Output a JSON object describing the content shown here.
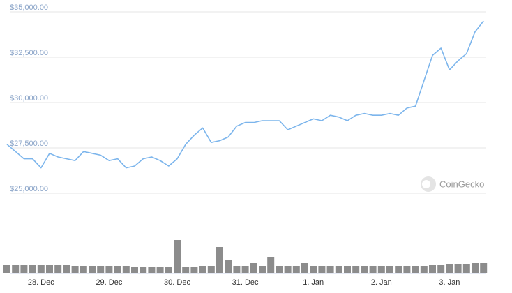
{
  "chart_data": {
    "type": "line",
    "watermark": "CoinGecko",
    "categories": [
      null,
      null,
      null,
      null,
      "28. Dec",
      null,
      null,
      null,
      null,
      null,
      null,
      null,
      "29. Dec",
      null,
      null,
      null,
      null,
      null,
      null,
      null,
      "30. Dec",
      null,
      null,
      null,
      null,
      null,
      null,
      null,
      "31. Dec",
      null,
      null,
      null,
      null,
      null,
      null,
      null,
      "1. Jan",
      null,
      null,
      null,
      null,
      null,
      null,
      null,
      "2. Jan",
      null,
      null,
      null,
      null,
      null,
      null,
      null,
      "3. Jan",
      null,
      null,
      null,
      null
    ],
    "series": [
      {
        "color": "#7cb5ec",
        "values": [
          27700,
          27300,
          26900,
          26900,
          26400,
          27200,
          27000,
          26900,
          26800,
          27300,
          27200,
          27100,
          26800,
          26900,
          26400,
          26500,
          26900,
          27000,
          26800,
          26500,
          26900,
          27700,
          28200,
          28600,
          27800,
          27900,
          28100,
          28700,
          28900,
          28900,
          29000,
          29000,
          29000,
          28500,
          28700,
          28900,
          29100,
          29000,
          29300,
          29200,
          29000,
          29300,
          29400,
          29300,
          29300,
          29400,
          29300,
          29700,
          29800,
          31200,
          32600,
          33000,
          31800,
          32300,
          32700,
          33900,
          34500
        ]
      }
    ],
    "volume": [
      12,
      12,
      12,
      12,
      12,
      12,
      12,
      12,
      11,
      11,
      11,
      11,
      10,
      10,
      10,
      9,
      9,
      9,
      9,
      9,
      48,
      9,
      9,
      10,
      11,
      38,
      20,
      11,
      10,
      15,
      11,
      24,
      10,
      10,
      10,
      15,
      10,
      10,
      10,
      10,
      10,
      10,
      10,
      10,
      10,
      10,
      10,
      10,
      10,
      11,
      12,
      12,
      13,
      14,
      14,
      15,
      15
    ],
    "volume_color": "#8c8c8c",
    "ylim": [
      25000,
      35000
    ],
    "yticks": [
      {
        "value": 25000,
        "label": "$25,000.00"
      },
      {
        "value": 27500,
        "label": "$27,500.00"
      },
      {
        "value": 30000,
        "label": "$30,000.00"
      },
      {
        "value": 32500,
        "label": "$32,500.00"
      },
      {
        "value": 35000,
        "label": "$35,000.00"
      }
    ],
    "grid": true
  }
}
